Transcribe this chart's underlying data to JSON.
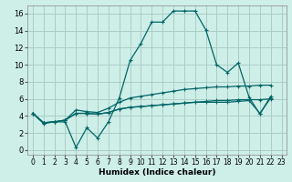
{
  "xlabel": "Humidex (Indice chaleur)",
  "background_color": "#ceeee8",
  "grid_color": "#aaccc8",
  "line_color": "#006666",
  "xlim": [
    -0.5,
    23.5
  ],
  "ylim": [
    -0.5,
    17
  ],
  "xticks": [
    0,
    1,
    2,
    3,
    4,
    5,
    6,
    7,
    8,
    9,
    10,
    11,
    12,
    13,
    14,
    15,
    16,
    17,
    18,
    19,
    20,
    21,
    22,
    23
  ],
  "yticks": [
    0,
    2,
    4,
    6,
    8,
    10,
    12,
    14,
    16
  ],
  "series": [
    [
      4.3,
      3.1,
      3.3,
      3.3,
      0.3,
      2.6,
      1.4,
      3.3,
      6.1,
      10.5,
      12.5,
      15.0,
      15.0,
      16.3,
      16.3,
      16.3,
      14.1,
      10.0,
      9.1,
      10.2,
      6.2,
      4.2,
      6.3
    ],
    [
      4.3,
      3.2,
      3.3,
      3.5,
      4.7,
      4.5,
      4.4,
      4.9,
      5.6,
      6.1,
      6.3,
      6.5,
      6.7,
      6.9,
      7.1,
      7.2,
      7.3,
      7.4,
      7.4,
      7.5,
      7.5,
      7.6,
      7.6
    ],
    [
      4.3,
      3.2,
      3.3,
      3.5,
      4.3,
      4.3,
      4.2,
      4.4,
      4.8,
      5.0,
      5.1,
      5.2,
      5.3,
      5.4,
      5.5,
      5.6,
      5.7,
      5.8,
      5.8,
      5.9,
      5.9,
      5.9,
      6.0
    ],
    [
      4.3,
      3.2,
      3.3,
      3.5,
      4.3,
      4.3,
      4.2,
      4.4,
      4.8,
      5.0,
      5.1,
      5.2,
      5.3,
      5.4,
      5.5,
      5.6,
      5.6,
      5.6,
      5.6,
      5.7,
      5.8,
      4.3,
      6.1
    ]
  ]
}
